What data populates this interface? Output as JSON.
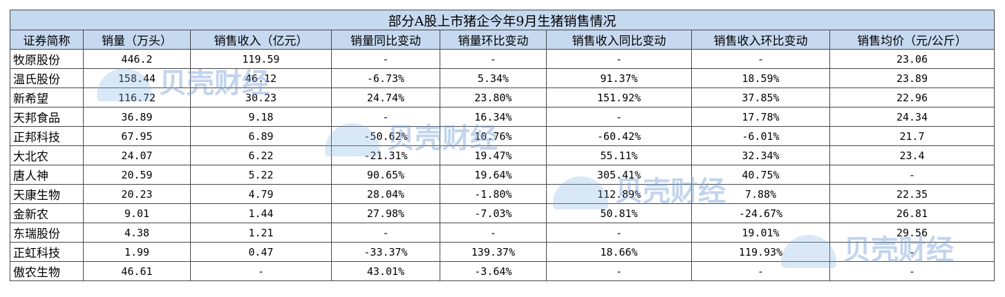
{
  "table": {
    "title": "部分A股上市猪企今年9月生猪销售情况",
    "header": [
      "证券简称",
      "销量（万头）",
      "销售收入（亿元）",
      "销量同比变动",
      "销量环比变动",
      "销售收入同比变动",
      "销售收入环比变动",
      "销售均价（元/公斤）"
    ],
    "rows": [
      [
        "牧原股份",
        "446.2",
        "119.59",
        "-",
        "-",
        "-",
        "-",
        "23.06"
      ],
      [
        "温氏股份",
        "158.44",
        "46.12",
        "-6.73%",
        "5.34%",
        "91.37%",
        "18.59%",
        "23.89"
      ],
      [
        "新希望",
        "116.72",
        "30.23",
        "24.74%",
        "23.80%",
        "151.92%",
        "37.85%",
        "22.96"
      ],
      [
        "天邦食品",
        "36.89",
        "9.18",
        "-",
        "16.34%",
        "-",
        "17.78%",
        "24.34"
      ],
      [
        "正邦科技",
        "67.95",
        "6.89",
        "-50.62%",
        "10.76%",
        "-60.42%",
        "-6.01%",
        "21.7"
      ],
      [
        "大北农",
        "24.07",
        "6.22",
        "-21.31%",
        "19.47%",
        "55.11%",
        "32.34%",
        "23.4"
      ],
      [
        "唐人神",
        "20.59",
        "5.22",
        "90.65%",
        "19.64%",
        "305.41%",
        "40.75%",
        "-"
      ],
      [
        "天康生物",
        "20.23",
        "4.79",
        "28.04%",
        "-1.80%",
        "112.89%",
        "7.88%",
        "22.35"
      ],
      [
        "金新农",
        "9.01",
        "1.44",
        "27.98%",
        "-7.03%",
        "50.81%",
        "-24.67%",
        "26.81"
      ],
      [
        "东瑞股份",
        "4.38",
        "1.21",
        "-",
        "-",
        "-",
        "19.01%",
        "29.56"
      ],
      [
        "正虹科技",
        "1.99",
        "0.47",
        "-33.37%",
        "139.37%",
        "18.66%",
        "119.93%",
        "-"
      ],
      [
        "傲农生物",
        "46.61",
        "-",
        "43.01%",
        "-3.64%",
        "-",
        "-",
        "-"
      ]
    ]
  },
  "watermark": "贝壳财经"
}
